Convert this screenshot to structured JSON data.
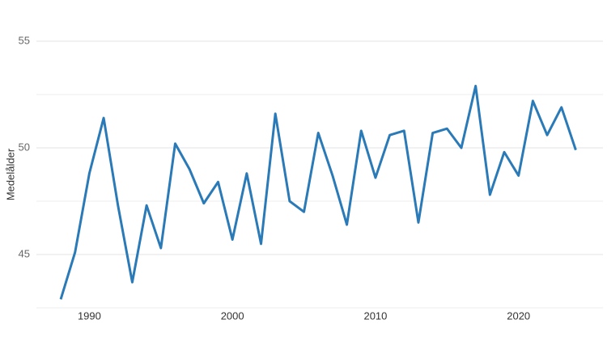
{
  "chart_data": {
    "type": "line",
    "y_label": "Medelålder",
    "x": [
      1988,
      1989,
      1990,
      1991,
      1992,
      1993,
      1994,
      1995,
      1996,
      1997,
      1998,
      1999,
      2000,
      2001,
      2002,
      2003,
      2004,
      2005,
      2006,
      2007,
      2008,
      2009,
      2010,
      2011,
      2012,
      2013,
      2014,
      2015,
      2016,
      2017,
      2018,
      2019,
      2020,
      2021,
      2022,
      2023,
      2024
    ],
    "series": [
      {
        "color": "#2a7ab8",
        "values": [
          42.9,
          45.1,
          48.8,
          51.4,
          47.3,
          43.7,
          47.3,
          45.3,
          50.2,
          49.0,
          47.4,
          48.4,
          45.7,
          48.8,
          45.5,
          51.6,
          47.5,
          47.0,
          50.7,
          48.7,
          46.4,
          50.8,
          48.6,
          50.6,
          50.8,
          46.5,
          50.7,
          50.9,
          50.0,
          52.9,
          47.8,
          49.8,
          48.7,
          52.2,
          50.6,
          51.9,
          49.9
        ]
      }
    ],
    "xlim": [
      1986.3,
      2025.9
    ],
    "xticks": [
      1990,
      2000,
      2010,
      2020
    ],
    "ylim": [
      42.5,
      56.2
    ],
    "yticks": [
      45,
      50,
      55
    ],
    "minor_yticks": [
      42.5,
      47.5,
      52.5
    ],
    "grid": true
  }
}
